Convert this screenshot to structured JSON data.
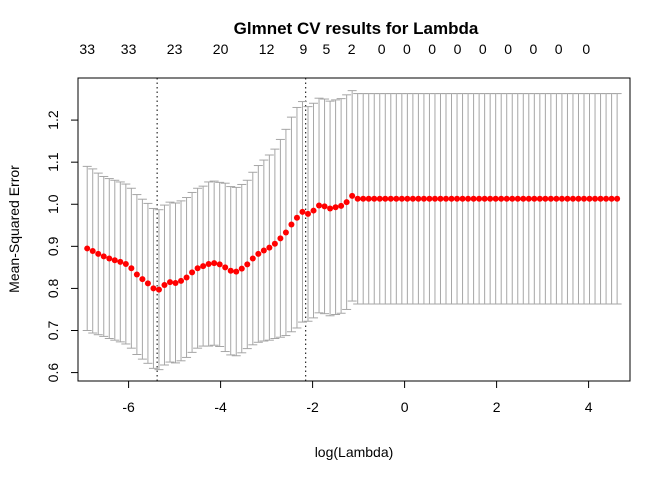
{
  "chart_data": {
    "type": "scatter",
    "title": "Glmnet CV results for Lambda",
    "xlabel": "log(Lambda)",
    "ylabel": "Mean-Squared Error",
    "xlim": [
      -7.1,
      4.9
    ],
    "ylim": [
      0.58,
      1.3
    ],
    "xticks": [
      -6,
      -4,
      -2,
      0,
      2,
      4
    ],
    "xtick_labels": [
      "-6",
      "-4",
      "-2",
      "0",
      "2",
      "4"
    ],
    "yticks": [
      0.6,
      0.7,
      0.8,
      0.9,
      1.0,
      1.1,
      1.2
    ],
    "ytick_labels": [
      "0.6",
      "0.7",
      "0.8",
      "0.9",
      "1.0",
      "1.1",
      "1.2"
    ],
    "top_axis": {
      "x": [
        -6.9,
        -6.0,
        -5.0,
        -4.0,
        -3.0,
        -2.2,
        -1.7,
        -1.15,
        -0.5,
        0.05,
        0.6,
        1.15,
        1.7,
        2.25,
        2.8,
        3.35,
        3.95
      ],
      "labels": [
        "33",
        "33",
        "23",
        "20",
        "12",
        "9",
        "5",
        "2",
        "0",
        "0",
        "0",
        "0",
        "0",
        "0",
        "0",
        "0",
        "0"
      ]
    },
    "vlines": [
      -5.38,
      -2.15
    ],
    "grid": false,
    "point_color": "#ff0000",
    "errorbar_color": "#a6a6a6",
    "series": [
      {
        "x": [
          -6.9,
          -6.78,
          -6.66,
          -6.54,
          -6.42,
          -6.3,
          -6.18,
          -6.06,
          -5.94,
          -5.82,
          -5.7,
          -5.58,
          -5.46,
          -5.34,
          -5.22,
          -5.1,
          -4.98,
          -4.86,
          -4.74,
          -4.62,
          -4.5,
          -4.38,
          -4.26,
          -4.14,
          -4.02,
          -3.9,
          -3.78,
          -3.66,
          -3.54,
          -3.42,
          -3.3,
          -3.18,
          -3.06,
          -2.94,
          -2.82,
          -2.7,
          -2.58,
          -2.46,
          -2.34,
          -2.22,
          -2.1,
          -1.98,
          -1.86,
          -1.74,
          -1.62,
          -1.5,
          -1.38,
          -1.26,
          -1.14,
          -1.02,
          -0.9,
          -0.78,
          -0.66,
          -0.54,
          -0.42,
          -0.3,
          -0.18,
          -0.06,
          0.06,
          0.18,
          0.3,
          0.42,
          0.54,
          0.66,
          0.78,
          0.9,
          1.02,
          1.14,
          1.26,
          1.38,
          1.5,
          1.62,
          1.74,
          1.86,
          1.98,
          2.1,
          2.22,
          2.34,
          2.46,
          2.58,
          2.7,
          2.82,
          2.94,
          3.06,
          3.18,
          3.3,
          3.42,
          3.54,
          3.66,
          3.78,
          3.9,
          4.02,
          4.14,
          4.26,
          4.38,
          4.5,
          4.62
        ],
        "y": [
          0.895,
          0.889,
          0.882,
          0.876,
          0.871,
          0.867,
          0.863,
          0.858,
          0.848,
          0.833,
          0.822,
          0.812,
          0.8,
          0.797,
          0.808,
          0.815,
          0.813,
          0.818,
          0.826,
          0.838,
          0.848,
          0.853,
          0.858,
          0.86,
          0.857,
          0.85,
          0.842,
          0.84,
          0.847,
          0.857,
          0.871,
          0.882,
          0.89,
          0.897,
          0.906,
          0.919,
          0.933,
          0.952,
          0.968,
          0.982,
          0.977,
          0.985,
          0.997,
          0.995,
          0.99,
          0.993,
          0.996,
          1.005,
          1.02,
          1.013,
          1.013,
          1.013,
          1.013,
          1.013,
          1.013,
          1.013,
          1.013,
          1.013,
          1.013,
          1.013,
          1.013,
          1.013,
          1.013,
          1.013,
          1.013,
          1.013,
          1.013,
          1.013,
          1.013,
          1.013,
          1.013,
          1.013,
          1.013,
          1.013,
          1.013,
          1.013,
          1.013,
          1.013,
          1.013,
          1.013,
          1.013,
          1.013,
          1.013,
          1.013,
          1.013,
          1.013,
          1.013,
          1.013,
          1.013,
          1.013,
          1.013,
          1.013,
          1.013,
          1.013,
          1.013,
          1.013,
          1.013
        ],
        "err": [
          0.195,
          0.195,
          0.192,
          0.19,
          0.19,
          0.19,
          0.19,
          0.19,
          0.19,
          0.19,
          0.19,
          0.19,
          0.19,
          0.19,
          0.19,
          0.19,
          0.19,
          0.19,
          0.19,
          0.19,
          0.19,
          0.19,
          0.195,
          0.195,
          0.195,
          0.2,
          0.2,
          0.2,
          0.2,
          0.2,
          0.205,
          0.21,
          0.215,
          0.22,
          0.225,
          0.235,
          0.245,
          0.255,
          0.262,
          0.262,
          0.255,
          0.255,
          0.255,
          0.255,
          0.255,
          0.255,
          0.255,
          0.255,
          0.25,
          0.25,
          0.25,
          0.25,
          0.25,
          0.25,
          0.25,
          0.25,
          0.25,
          0.25,
          0.25,
          0.25,
          0.25,
          0.25,
          0.25,
          0.25,
          0.25,
          0.25,
          0.25,
          0.25,
          0.25,
          0.25,
          0.25,
          0.25,
          0.25,
          0.25,
          0.25,
          0.25,
          0.25,
          0.25,
          0.25,
          0.25,
          0.25,
          0.25,
          0.25,
          0.25,
          0.25,
          0.25,
          0.25,
          0.25,
          0.25,
          0.25,
          0.25,
          0.25,
          0.25,
          0.25,
          0.25,
          0.25,
          0.25
        ]
      }
    ]
  }
}
